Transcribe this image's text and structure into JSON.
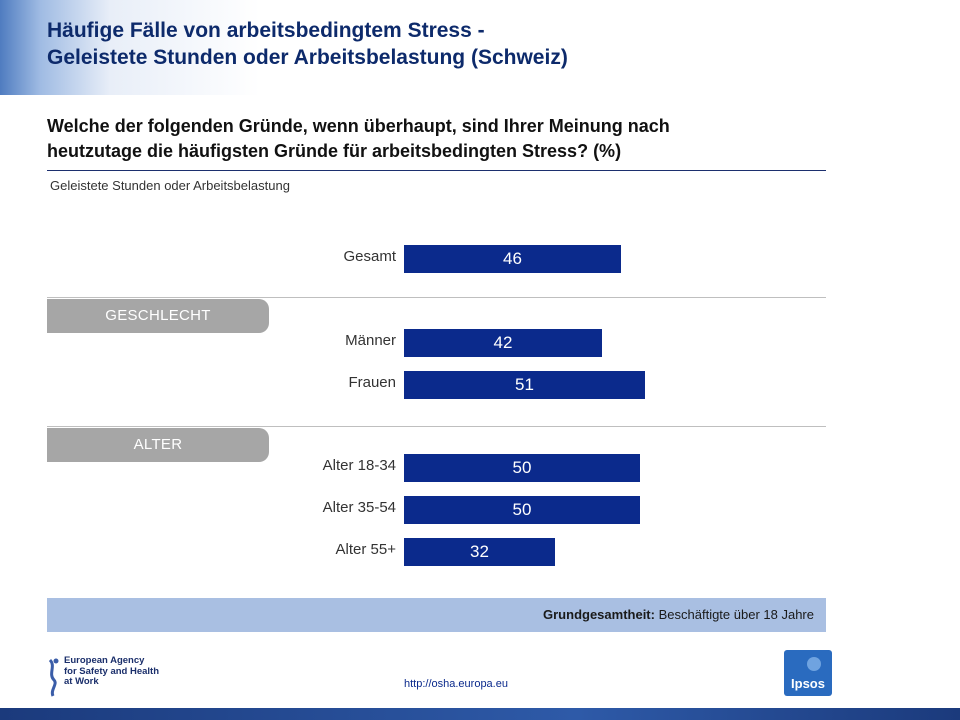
{
  "header": {
    "title_line1": "Häufige Fälle von arbeitsbedingtem Stress -",
    "title_line2": "Geleistete Stunden oder Arbeitsbelastung (Schweiz)"
  },
  "question": {
    "line1": "Welche der folgenden Gründe, wenn überhaupt, sind Ihrer Meinung nach",
    "line2": "heutzutage die häufigsten Gründe für arbeitsbedingten Stress? (%)"
  },
  "subtitle": "Geleistete Stunden oder Arbeitsbelastung",
  "groups": {
    "gender": "GESCHLECHT",
    "age": "ALTER"
  },
  "chart_data": {
    "type": "bar",
    "orientation": "horizontal",
    "title": "Geleistete Stunden oder Arbeitsbelastung",
    "categories": [
      "Gesamt",
      "Männer",
      "Frauen",
      "Alter 18-34",
      "Alter 35-54",
      "Alter 55+"
    ],
    "values": [
      46,
      42,
      51,
      50,
      50,
      32
    ],
    "data_labels": [
      "46",
      "42",
      "51",
      "50",
      "50",
      "32"
    ],
    "xlim": [
      0,
      100
    ],
    "bar_color": "#0b2a8c",
    "grid": false,
    "legend": "none"
  },
  "base": {
    "label": "Grundgesamtheit:",
    "value": "Beschäftigte über 18 Jahre"
  },
  "footer": {
    "url": "http://osha.europa.eu",
    "osha_logo_text": [
      "European Agency",
      "for Safety and Health",
      "at Work"
    ],
    "ipsos_logo_text": "Ipsos"
  }
}
